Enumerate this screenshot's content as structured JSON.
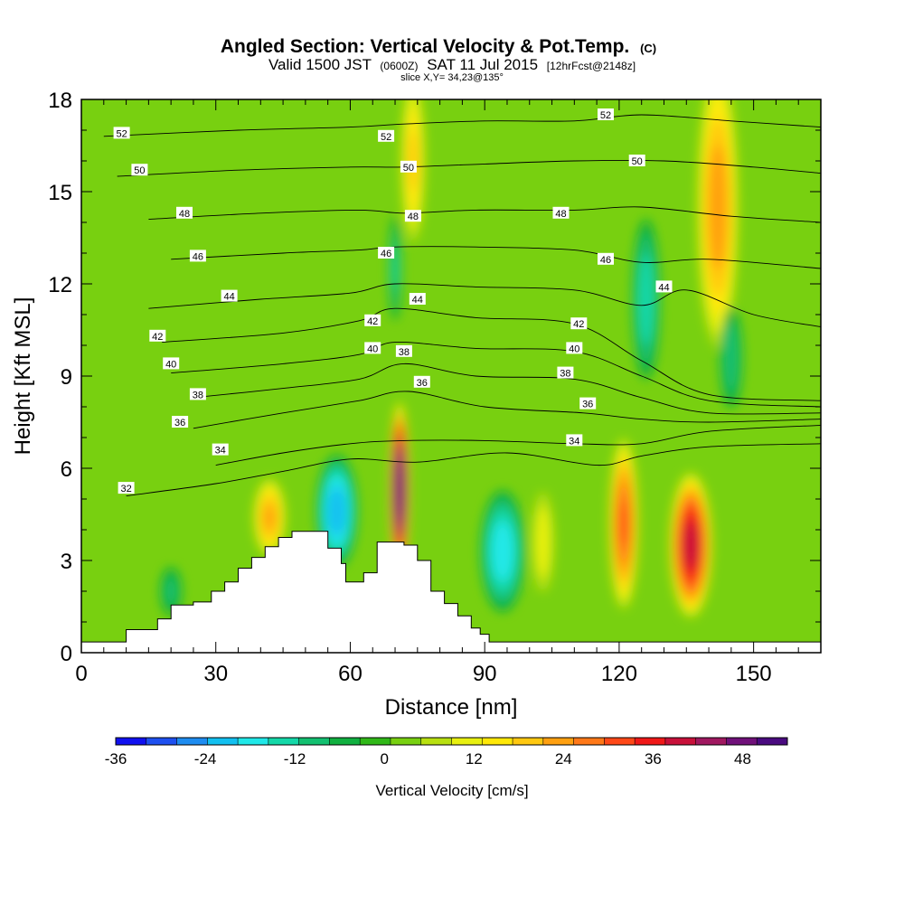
{
  "chart_data": {
    "type": "heatmap",
    "title": "Angled Section: Vertical Velocity & Pot.Temp.",
    "title_tag": "(C)",
    "subtitle_parts": [
      "Valid 1500 JST",
      "(0600Z)",
      "SAT 11 Jul 2015",
      "[12hrFcst@2148z]"
    ],
    "slice_info": "slice X,Y= 34,23@135°",
    "xlabel": "Distance [nm]",
    "ylabel": "Height [Kft MSL]",
    "xlim": [
      0,
      165
    ],
    "ylim": [
      0,
      18
    ],
    "x_ticks": [
      0,
      30,
      60,
      90,
      120,
      150
    ],
    "y_ticks": [
      0,
      3,
      6,
      9,
      12,
      15,
      18
    ],
    "x_tick_labels": [
      "0",
      "30",
      "60",
      "90",
      "120",
      "150"
    ],
    "y_tick_labels": [
      "0",
      "3",
      "6",
      "9",
      "12",
      "15",
      "18"
    ],
    "colorbar": {
      "label": "Vertical Velocity [cm/s]",
      "min": -36,
      "max": 54,
      "step": 4,
      "tick_values": [
        -36,
        -24,
        -12,
        0,
        12,
        24,
        36,
        48
      ],
      "tick_labels": [
        "-36",
        "-24",
        "-12",
        "0",
        "12",
        "24",
        "36",
        "48"
      ],
      "colors": [
        "#1010f0",
        "#1e50f0",
        "#1e8cf0",
        "#12c0f0",
        "#20e8e8",
        "#14d8a8",
        "#12c070",
        "#10b040",
        "#30b818",
        "#78d010",
        "#b8e010",
        "#e8f010",
        "#ffe808",
        "#ffc810",
        "#ffa010",
        "#ff7818",
        "#ff4818",
        "#f01818",
        "#c8103a",
        "#a01860",
        "#70107a",
        "#4a0a80"
      ]
    },
    "terrain_profile": [
      [
        0,
        0.35
      ],
      [
        10,
        0.75
      ],
      [
        17,
        1.1
      ],
      [
        20,
        1.55
      ],
      [
        25,
        1.65
      ],
      [
        29,
        2.0
      ],
      [
        32,
        2.3
      ],
      [
        35,
        2.75
      ],
      [
        38,
        3.1
      ],
      [
        41,
        3.45
      ],
      [
        44,
        3.75
      ],
      [
        47,
        3.95
      ],
      [
        52,
        3.95
      ],
      [
        55,
        3.4
      ],
      [
        58,
        2.9
      ],
      [
        59,
        2.3
      ],
      [
        62,
        2.3
      ],
      [
        63,
        2.6
      ],
      [
        66,
        3.6
      ],
      [
        69,
        3.6
      ],
      [
        72,
        3.5
      ],
      [
        75,
        3.0
      ],
      [
        78,
        2.0
      ],
      [
        81,
        1.6
      ],
      [
        84,
        1.2
      ],
      [
        87,
        0.8
      ],
      [
        89,
        0.6
      ],
      [
        91,
        0.35
      ],
      [
        165,
        0.35
      ]
    ],
    "vertical_velocity_features": [
      {
        "x": 71,
        "z": 5.3,
        "value": 52,
        "half_width_nm": 2.3,
        "half_height_kft": 3.0
      },
      {
        "x": 136,
        "z": 3.5,
        "value": 38,
        "half_width_nm": 5.0,
        "half_height_kft": 2.5
      },
      {
        "x": 121,
        "z": 4.2,
        "value": 28,
        "half_width_nm": 3.5,
        "half_height_kft": 3.0
      },
      {
        "x": 42,
        "z": 4.4,
        "value": 20,
        "half_width_nm": 4.0,
        "half_height_kft": 1.4
      },
      {
        "x": 57,
        "z": 4.6,
        "value": -22,
        "half_width_nm": 5.0,
        "half_height_kft": 2.0
      },
      {
        "x": 94,
        "z": 3.3,
        "value": -18,
        "half_width_nm": 5.5,
        "half_height_kft": 2.2
      },
      {
        "x": 103,
        "z": 3.6,
        "value": 10,
        "half_width_nm": 3.0,
        "half_height_kft": 2.0
      },
      {
        "x": 74,
        "z": 16,
        "value": 16,
        "half_width_nm": 3.0,
        "half_height_kft": 3.0
      },
      {
        "x": 142,
        "z": 14.5,
        "value": 22,
        "half_width_nm": 5.0,
        "half_height_kft": 5.0
      },
      {
        "x": 126,
        "z": 11.5,
        "value": -14,
        "half_width_nm": 3.5,
        "half_height_kft": 3.0
      },
      {
        "x": 145,
        "z": 9.6,
        "value": -10,
        "half_width_nm": 3.0,
        "half_height_kft": 2.0
      },
      {
        "x": 70,
        "z": 12.5,
        "value": -12,
        "half_width_nm": 1.5,
        "half_height_kft": 2.0
      },
      {
        "x": 20,
        "z": 2.0,
        "value": -8,
        "half_width_nm": 3.0,
        "half_height_kft": 1.0
      }
    ],
    "potential_temperature_contours": [
      {
        "value": 32,
        "points": [
          [
            10,
            5.1
          ],
          [
            30,
            5.5
          ],
          [
            45,
            5.9
          ],
          [
            60,
            6.3
          ],
          [
            75,
            6.2
          ],
          [
            95,
            6.5
          ],
          [
            115,
            6.1
          ],
          [
            125,
            6.4
          ],
          [
            140,
            6.7
          ],
          [
            165,
            6.8
          ]
        ],
        "label_positions": [
          [
            10,
            5.35
          ]
        ]
      },
      {
        "value": 34,
        "points": [
          [
            30,
            6.1
          ],
          [
            45,
            6.5
          ],
          [
            60,
            6.8
          ],
          [
            72,
            6.9
          ],
          [
            90,
            6.9
          ],
          [
            110,
            6.8
          ],
          [
            125,
            6.8
          ],
          [
            140,
            7.2
          ],
          [
            165,
            7.4
          ]
        ],
        "label_positions": [
          [
            31,
            6.6
          ],
          [
            110,
            6.9
          ]
        ]
      },
      {
        "value": 36,
        "points": [
          [
            25,
            7.3
          ],
          [
            45,
            7.8
          ],
          [
            62,
            8.2
          ],
          [
            73,
            8.5
          ],
          [
            90,
            8.0
          ],
          [
            112,
            7.8
          ],
          [
            125,
            7.6
          ],
          [
            140,
            7.5
          ],
          [
            165,
            7.6
          ]
        ],
        "label_positions": [
          [
            22,
            7.5
          ],
          [
            76,
            8.8
          ],
          [
            113,
            8.1
          ]
        ]
      },
      {
        "value": 38,
        "points": [
          [
            25,
            8.3
          ],
          [
            45,
            8.6
          ],
          [
            62,
            8.9
          ],
          [
            72,
            9.4
          ],
          [
            88,
            9.0
          ],
          [
            110,
            8.9
          ],
          [
            125,
            8.3
          ],
          [
            140,
            7.8
          ],
          [
            165,
            7.8
          ]
        ],
        "label_positions": [
          [
            26,
            8.4
          ],
          [
            72,
            9.8
          ],
          [
            108,
            9.1
          ]
        ]
      },
      {
        "value": 40,
        "points": [
          [
            20,
            9.1
          ],
          [
            45,
            9.4
          ],
          [
            62,
            9.7
          ],
          [
            70,
            10.1
          ],
          [
            88,
            9.9
          ],
          [
            110,
            9.8
          ],
          [
            125,
            9.0
          ],
          [
            140,
            8.2
          ],
          [
            165,
            8.0
          ]
        ],
        "label_positions": [
          [
            20,
            9.4
          ],
          [
            65,
            9.9
          ],
          [
            110,
            9.9
          ]
        ]
      },
      {
        "value": 42,
        "points": [
          [
            18,
            10.1
          ],
          [
            45,
            10.4
          ],
          [
            62,
            10.8
          ],
          [
            70,
            11.2
          ],
          [
            88,
            10.9
          ],
          [
            110,
            10.7
          ],
          [
            125,
            9.5
          ],
          [
            140,
            8.4
          ],
          [
            165,
            8.2
          ]
        ],
        "label_positions": [
          [
            17,
            10.3
          ],
          [
            65,
            10.8
          ],
          [
            111,
            10.7
          ]
        ]
      },
      {
        "value": 44,
        "points": [
          [
            15,
            11.2
          ],
          [
            40,
            11.5
          ],
          [
            60,
            11.7
          ],
          [
            70,
            12.0
          ],
          [
            88,
            11.9
          ],
          [
            110,
            11.8
          ],
          [
            125,
            11.3
          ],
          [
            135,
            11.8
          ],
          [
            150,
            11.0
          ],
          [
            165,
            10.6
          ]
        ],
        "label_positions": [
          [
            33,
            11.6
          ],
          [
            75,
            11.5
          ],
          [
            130,
            11.9
          ]
        ]
      },
      {
        "value": 46,
        "points": [
          [
            20,
            12.8
          ],
          [
            45,
            13.0
          ],
          [
            62,
            13.1
          ],
          [
            70,
            13.2
          ],
          [
            88,
            13.2
          ],
          [
            110,
            13.1
          ],
          [
            125,
            12.7
          ],
          [
            140,
            12.8
          ],
          [
            165,
            12.5
          ]
        ],
        "label_positions": [
          [
            26,
            12.9
          ],
          [
            68,
            13.0
          ],
          [
            117,
            12.8
          ]
        ]
      },
      {
        "value": 48,
        "points": [
          [
            15,
            14.1
          ],
          [
            40,
            14.3
          ],
          [
            62,
            14.4
          ],
          [
            72,
            14.3
          ],
          [
            88,
            14.4
          ],
          [
            110,
            14.4
          ],
          [
            125,
            14.5
          ],
          [
            145,
            14.2
          ],
          [
            165,
            14.0
          ]
        ],
        "label_positions": [
          [
            23,
            14.3
          ],
          [
            74,
            14.2
          ],
          [
            107,
            14.3
          ]
        ]
      },
      {
        "value": 50,
        "points": [
          [
            8,
            15.5
          ],
          [
            35,
            15.7
          ],
          [
            60,
            15.8
          ],
          [
            72,
            15.8
          ],
          [
            90,
            15.9
          ],
          [
            110,
            16.0
          ],
          [
            130,
            16.0
          ],
          [
            150,
            15.8
          ],
          [
            165,
            15.6
          ]
        ],
        "label_positions": [
          [
            13,
            15.7
          ],
          [
            73,
            15.8
          ],
          [
            124,
            16.0
          ]
        ]
      },
      {
        "value": 52,
        "points": [
          [
            5,
            16.8
          ],
          [
            35,
            17.0
          ],
          [
            60,
            17.1
          ],
          [
            72,
            17.2
          ],
          [
            90,
            17.3
          ],
          [
            110,
            17.3
          ],
          [
            125,
            17.5
          ],
          [
            145,
            17.3
          ],
          [
            165,
            17.1
          ]
        ],
        "label_positions": [
          [
            9,
            16.9
          ],
          [
            68,
            16.8
          ],
          [
            117,
            17.5
          ]
        ]
      }
    ]
  }
}
